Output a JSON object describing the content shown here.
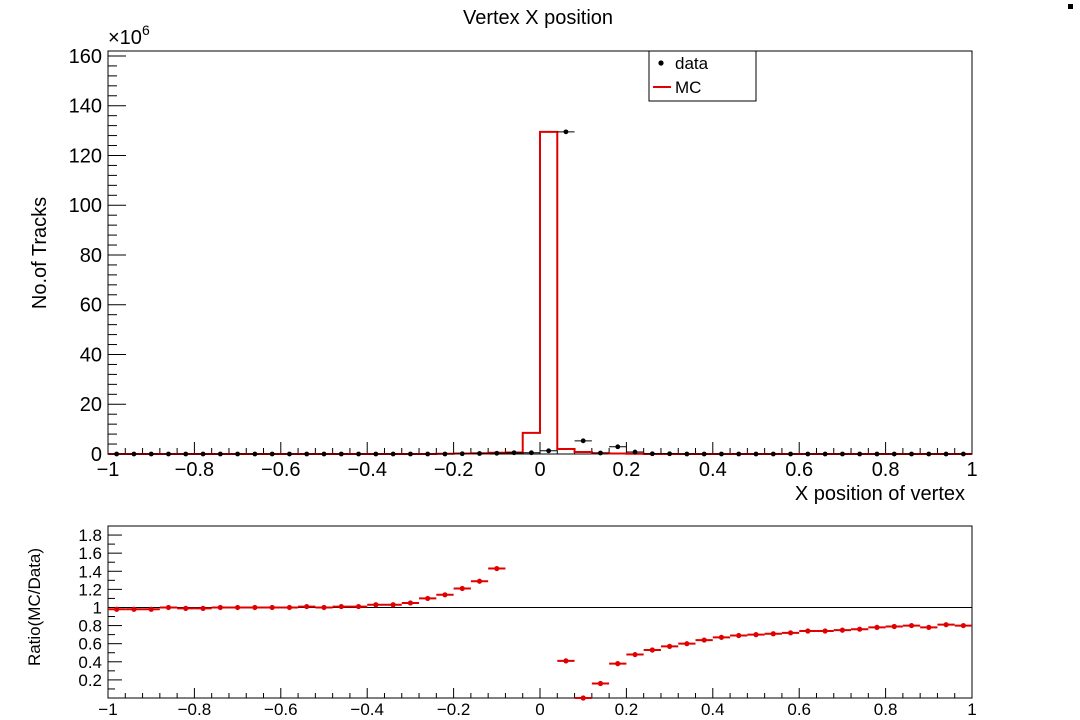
{
  "chart_data": [
    {
      "type": "histogram",
      "title": "Vertex X position",
      "xlabel": "X position of vertex",
      "ylabel": "No.of Tracks",
      "y_multiplier": "×10",
      "y_multiplier_exp": "6",
      "xlim": [
        -1,
        1
      ],
      "ylim": [
        0,
        162
      ],
      "x_ticks": [
        -1,
        -0.8,
        -0.6,
        -0.4,
        -0.2,
        0,
        0.2,
        0.4,
        0.6,
        0.8,
        1
      ],
      "x_tick_labels": [
        "−1",
        "−0.8",
        "−0.6",
        "−0.4",
        "−0.2",
        "0",
        "0.2",
        "0.4",
        "0.6",
        "0.8",
        "1"
      ],
      "y_ticks": [
        0,
        20,
        40,
        60,
        80,
        100,
        120,
        140,
        160
      ],
      "y_tick_labels": [
        "0",
        "20",
        "40",
        "60",
        "80",
        "100",
        "120",
        "140",
        "160"
      ],
      "legend": {
        "position": "top-right",
        "entries": [
          "data",
          "MC"
        ]
      },
      "bins": {
        "start": -1,
        "width": 0.04,
        "count": 50
      },
      "series": [
        {
          "name": "data",
          "style": "points",
          "color": "#000000",
          "values": [
            0,
            0,
            0,
            0,
            0,
            0,
            0,
            0,
            0,
            0,
            0,
            0,
            0,
            0,
            0,
            0,
            0,
            0,
            0,
            0,
            0.1,
            0.2,
            0.3,
            0.5,
            0.5,
            1.3,
            129.5,
            5.3,
            0.4,
            2.9,
            0.8,
            0.1,
            0.1,
            0,
            0,
            0,
            0,
            0,
            0,
            0,
            0,
            0,
            0,
            0,
            0,
            0,
            0,
            0,
            0,
            0
          ]
        },
        {
          "name": "MC",
          "style": "step",
          "color": "#e00000",
          "values": [
            0,
            0,
            0,
            0,
            0,
            0,
            0,
            0,
            0,
            0,
            0,
            0,
            0,
            0,
            0,
            0,
            0,
            0,
            0,
            0.1,
            0.2,
            0.3,
            0.5,
            0.6,
            8.5,
            129.5,
            2.0,
            0.8,
            0.3,
            0.2,
            0.1,
            0,
            0,
            0,
            0,
            0,
            0,
            0,
            0,
            0,
            0,
            0,
            0,
            0,
            0,
            0,
            0,
            0,
            0,
            0
          ]
        }
      ]
    },
    {
      "type": "scatter",
      "title": "",
      "xlabel": "",
      "ylabel": "Ratio(MC/Data)",
      "xlim": [
        -1,
        1
      ],
      "ylim": [
        0,
        1.9
      ],
      "reference_line": 1,
      "x_ticks": [
        -1,
        -0.8,
        -0.6,
        -0.4,
        -0.2,
        0,
        0.2,
        0.4,
        0.6,
        0.8,
        1
      ],
      "x_tick_labels": [
        "−1",
        "−0.8",
        "−0.6",
        "−0.4",
        "−0.2",
        "0",
        "0.2",
        "0.4",
        "0.6",
        "0.8",
        "1"
      ],
      "y_ticks": [
        0.2,
        0.4,
        0.6,
        0.8,
        1,
        1.2,
        1.4,
        1.6,
        1.8
      ],
      "y_tick_labels": [
        "0.2",
        "0.4",
        "0.6",
        "0.8",
        "1",
        "1.2",
        "1.4",
        "1.6",
        "1.8"
      ],
      "series": [
        {
          "name": "",
          "color": "#e00000",
          "x": [
            -0.98,
            -0.94,
            -0.9,
            -0.86,
            -0.82,
            -0.78,
            -0.74,
            -0.7,
            -0.66,
            -0.62,
            -0.58,
            -0.54,
            -0.5,
            -0.46,
            -0.42,
            -0.38,
            -0.34,
            -0.3,
            -0.26,
            -0.22,
            -0.18,
            -0.14,
            -0.1,
            0.06,
            0.1,
            0.14,
            0.18,
            0.22,
            0.26,
            0.3,
            0.34,
            0.38,
            0.42,
            0.46,
            0.5,
            0.54,
            0.58,
            0.62,
            0.66,
            0.7,
            0.74,
            0.78,
            0.82,
            0.86,
            0.9,
            0.94,
            0.98
          ],
          "y": [
            0.98,
            0.98,
            0.98,
            1.0,
            0.99,
            0.99,
            1.0,
            1.0,
            1.0,
            1.0,
            1.0,
            1.01,
            1.0,
            1.01,
            1.01,
            1.03,
            1.03,
            1.05,
            1.1,
            1.14,
            1.21,
            1.29,
            1.43,
            0.41,
            0.0,
            0.16,
            0.38,
            0.48,
            0.53,
            0.57,
            0.6,
            0.64,
            0.67,
            0.69,
            0.7,
            0.71,
            0.72,
            0.74,
            0.74,
            0.75,
            0.76,
            0.78,
            0.79,
            0.8,
            0.78,
            0.81,
            0.8
          ]
        }
      ]
    }
  ]
}
